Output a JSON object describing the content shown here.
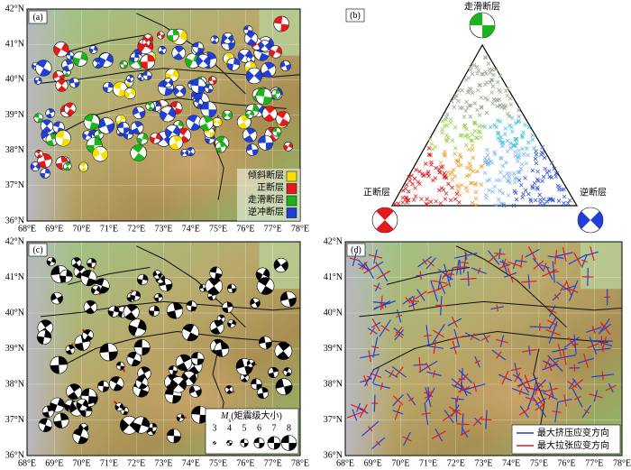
{
  "panels": [
    {
      "label": "(a)",
      "lat_labels": [
        "42°N",
        "41°N",
        "40°N",
        "39°N",
        "38°N",
        "37°N",
        "36°N"
      ],
      "lon_labels": [
        "68°E",
        "69°E",
        "70°E",
        "71°E",
        "72°E",
        "73°E",
        "74°E",
        "75°E",
        "76°E",
        "77°E",
        "78°E"
      ],
      "legend": [
        {
          "label": "倾斜断层",
          "color": "#f5e100"
        },
        {
          "label": "正断层",
          "color": "#e31a1c"
        },
        {
          "label": "走滑断层",
          "color": "#1db31d"
        },
        {
          "label": "逆冲断层",
          "color": "#1f3fd6"
        }
      ]
    },
    {
      "label": "(b)",
      "top_label": "走滑断层",
      "left_label": "正断层",
      "right_label": "逆断层"
    },
    {
      "label": "(c)",
      "lat_labels": [
        "42°N",
        "41°N",
        "40°N",
        "39°N",
        "38°N",
        "37°N",
        "36°N"
      ],
      "lon_labels": [
        "68°E",
        "69°E",
        "70°E",
        "71°E",
        "72°E",
        "73°E",
        "74°E",
        "75°E",
        "76°E",
        "77°E",
        "78°E"
      ],
      "magnitude_legend": {
        "symbol": "M",
        "subscript": "s",
        "text": "(矩震级大小)",
        "sizes": [
          3,
          4,
          5,
          6,
          7,
          8
        ]
      }
    },
    {
      "label": "(d)",
      "lat_labels": [
        "42°N",
        "41°N",
        "40°N",
        "39°N",
        "38°N",
        "37°N",
        "36°N"
      ],
      "lon_labels": [
        "68°E",
        "69°E",
        "70°E",
        "71°E",
        "72°E",
        "73°E",
        "74°E",
        "75°E",
        "76°E",
        "77°E",
        "78°E"
      ],
      "legend": [
        {
          "label": "最大挤压应变方向",
          "color": "#1f3fd6"
        },
        {
          "label": "最大拉张应变方向",
          "color": "#e31a1c"
        }
      ]
    }
  ]
}
